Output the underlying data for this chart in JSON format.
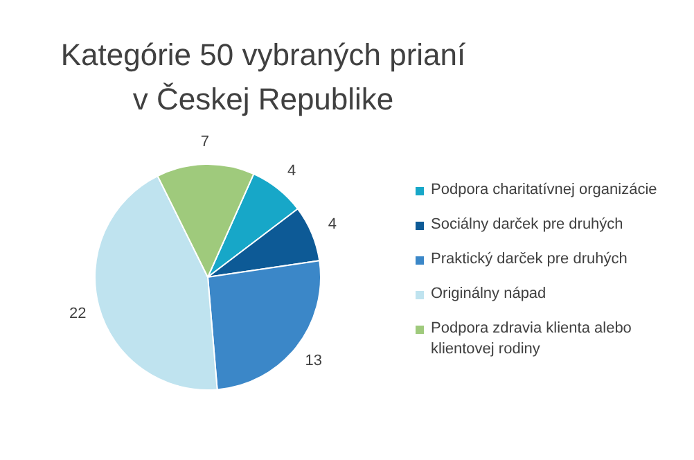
{
  "chart_data": {
    "type": "pie",
    "title": "Kategórie 50 vybraných prianí v Českej Republike",
    "categories": [
      "Podpora charitatívnej organizácie",
      "Sociálny darček pre druhých",
      "Praktický darček pre druhých",
      "Originálny nápad",
      "Podpora zdravia klienta alebo klientovej rodiny"
    ],
    "values": [
      4,
      4,
      13,
      22,
      7
    ],
    "colors": [
      "#17a7c8",
      "#0d5a96",
      "#3b87c8",
      "#bfe3ef",
      "#9fca7c"
    ],
    "data_labels": true,
    "legend": "right"
  }
}
